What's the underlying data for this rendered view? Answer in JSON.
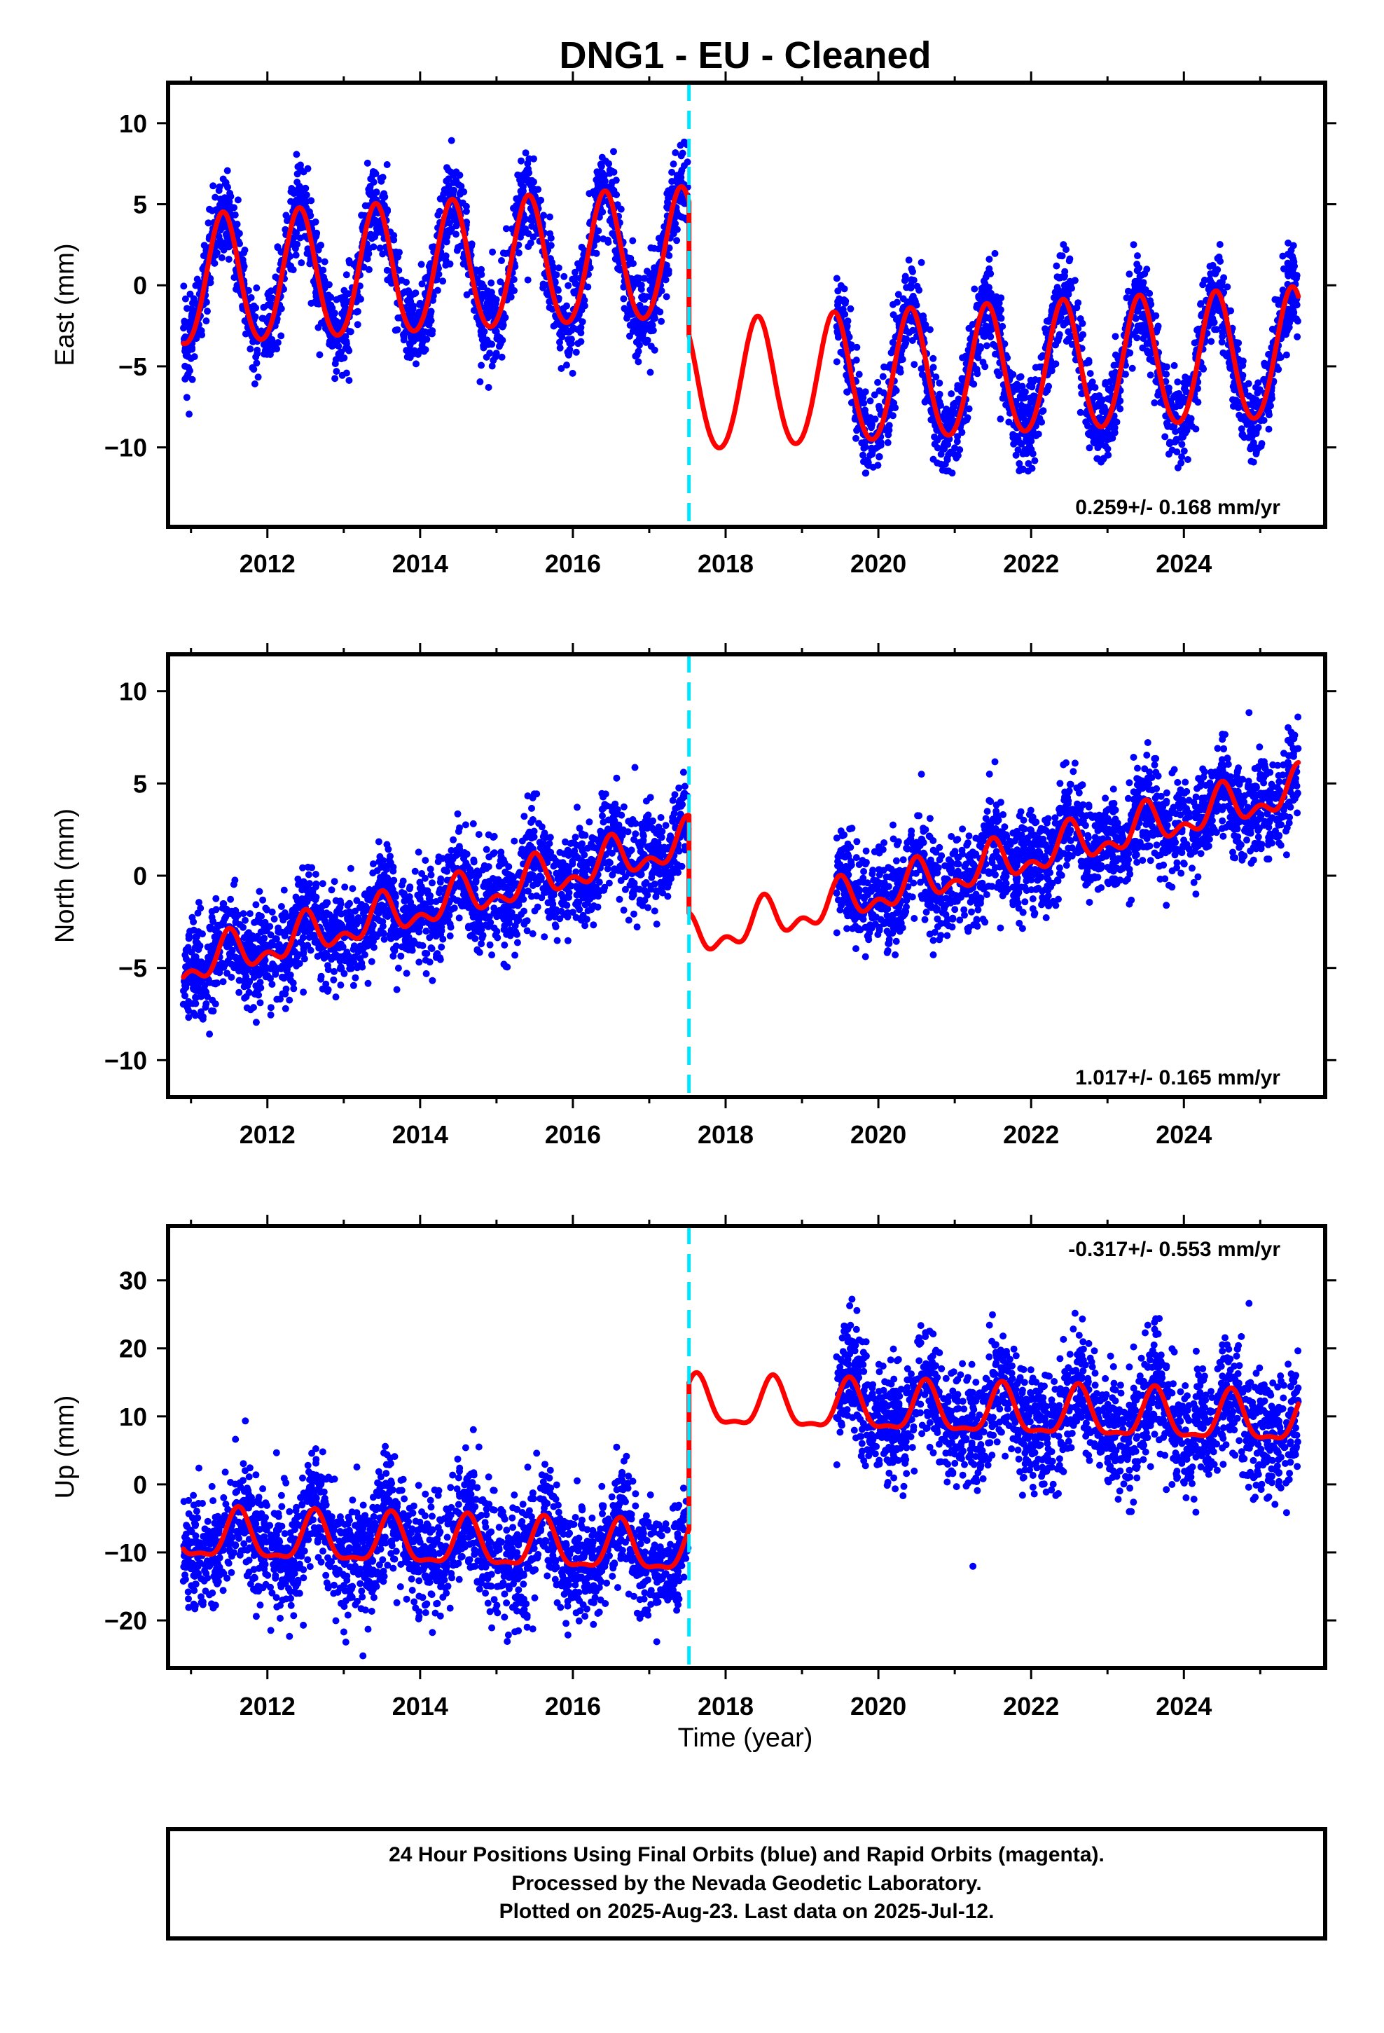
{
  "title": "DNG1  - EU - Cleaned",
  "xlabel": "Time (year)",
  "colors": {
    "points": "#0000ff",
    "fit": "#ff0000",
    "break": "#00e5ff",
    "frame": "#000000"
  },
  "footer": [
    "24 Hour Positions Using Final Orbits (blue) and Rapid Orbits (magenta).",
    "Processed by the Nevada Geodetic Laboratory.",
    "Plotted on 2025-Aug-23. Last data on 2025-Jul-12."
  ],
  "chart_data": [
    {
      "type": "scatter",
      "component": "east",
      "ylabel": "East (mm)",
      "rate_label": "0.259+/- 0.168 mm/yr",
      "rate_position": "bottom-right",
      "xlim": [
        2010.7,
        2025.85
      ],
      "ylim": [
        -14.9,
        12.5
      ],
      "yticks": [
        -10,
        -5,
        0,
        5,
        10
      ],
      "xticks": [
        2012,
        2014,
        2016,
        2018,
        2020,
        2022,
        2024
      ],
      "equipment_break": 2017.52,
      "data_gap": [
        2017.55,
        2019.45
      ],
      "fit_segments": [
        {
          "start": 2010.9,
          "end": 2017.52,
          "offset": 0.9,
          "trend": 0.26,
          "amplitude": 4.0,
          "phase_peak": 0.42,
          "semiannual": 0.3,
          "y0": 2014.0
        },
        {
          "start": 2017.52,
          "end": 2025.5,
          "offset": -5.4,
          "trend": 0.26,
          "amplitude": 4.0,
          "phase_peak": 0.42,
          "semiannual": 0.3,
          "y0": 2021.5
        }
      ],
      "point_scatter": 1.3,
      "points_per_year": 330
    },
    {
      "type": "scatter",
      "component": "north",
      "ylabel": "North (mm)",
      "rate_label": "1.017+/- 0.165 mm/yr",
      "rate_position": "bottom-right",
      "xlim": [
        2010.7,
        2025.85
      ],
      "ylim": [
        -12,
        12
      ],
      "yticks": [
        -10,
        -5,
        0,
        5,
        10
      ],
      "xticks": [
        2012,
        2014,
        2016,
        2018,
        2020,
        2022,
        2024
      ],
      "equipment_break": 2017.52,
      "data_gap": [
        2017.55,
        2019.45
      ],
      "fit_segments": [
        {
          "start": 2010.9,
          "end": 2017.52,
          "offset": -1.8,
          "trend": 1.02,
          "amplitude": 0.9,
          "phase_peak": 0.5,
          "semiannual": 0.6,
          "y0": 2014.0
        },
        {
          "start": 2017.52,
          "end": 2025.5,
          "offset": -2.4,
          "trend": 1.02,
          "amplitude": 0.9,
          "phase_peak": 0.5,
          "semiannual": 0.6,
          "y0": 2018.6
        }
      ],
      "point_scatter": 1.3,
      "points_per_year": 330
    },
    {
      "type": "scatter",
      "component": "up",
      "ylabel": "Up (mm)",
      "rate_label": "-0.317+/- 0.553 mm/yr",
      "rate_position": "top-right",
      "xlim": [
        2010.7,
        2025.85
      ],
      "ylim": [
        -27,
        38
      ],
      "yticks": [
        -20,
        -10,
        0,
        10,
        20,
        30
      ],
      "xticks": [
        2012,
        2014,
        2016,
        2018,
        2020,
        2022,
        2024
      ],
      "equipment_break": 2017.52,
      "data_gap": [
        2017.55,
        2019.45
      ],
      "fit_segments": [
        {
          "start": 2010.9,
          "end": 2017.52,
          "offset": -8.7,
          "trend": -0.32,
          "amplitude": 3.5,
          "phase_peak": 0.62,
          "semiannual": 1.2,
          "y0": 2014.0
        },
        {
          "start": 2017.52,
          "end": 2025.5,
          "offset": 10.5,
          "trend": -0.32,
          "amplitude": 3.5,
          "phase_peak": 0.62,
          "semiannual": 1.2,
          "y0": 2021.5
        }
      ],
      "point_scatter": 4.2,
      "points_per_year": 330
    }
  ]
}
